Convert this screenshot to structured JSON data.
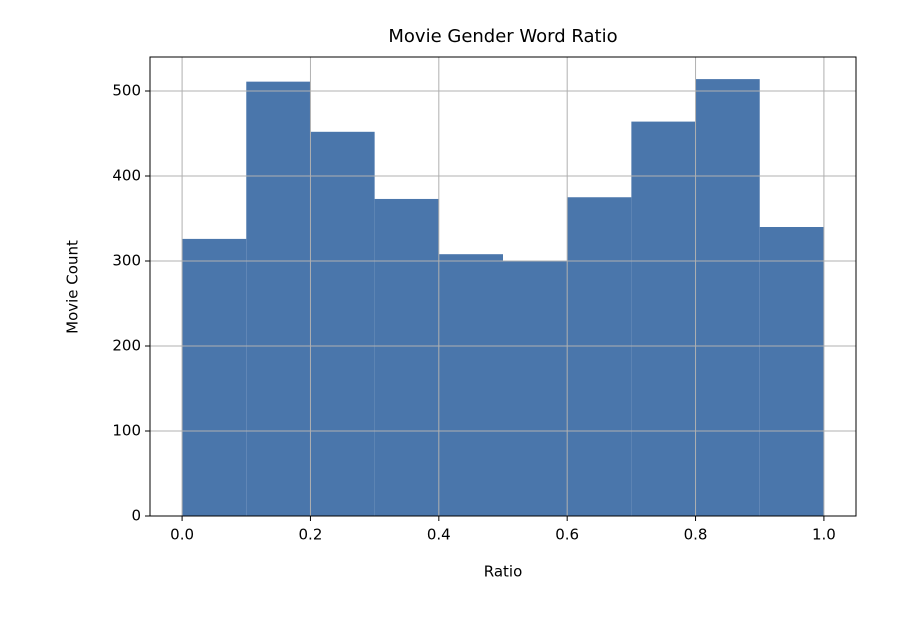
{
  "chart_data": {
    "type": "histogram",
    "title": "Movie Gender Word Ratio",
    "x_label": "Ratio",
    "y_label": "Movie Count",
    "bins": [
      0,
      0.1,
      0.2,
      0.3,
      0.4,
      0.5,
      0.6,
      0.7,
      0.8,
      0.9,
      1.0
    ],
    "values": [
      326,
      511,
      452,
      373,
      308,
      300,
      375,
      464,
      514,
      340
    ],
    "color": "#4a76ab",
    "xlim": [
      -0.05,
      1.05
    ],
    "ylim": [
      0,
      540
    ],
    "xticks": [
      {
        "value": 0,
        "label": "0.0"
      },
      0.2,
      0.4,
      0.6,
      0.8,
      {
        "value": 1,
        "label": "1.0"
      }
    ],
    "yticks": [
      0,
      100,
      200,
      300,
      400,
      500
    ],
    "grid": true
  }
}
